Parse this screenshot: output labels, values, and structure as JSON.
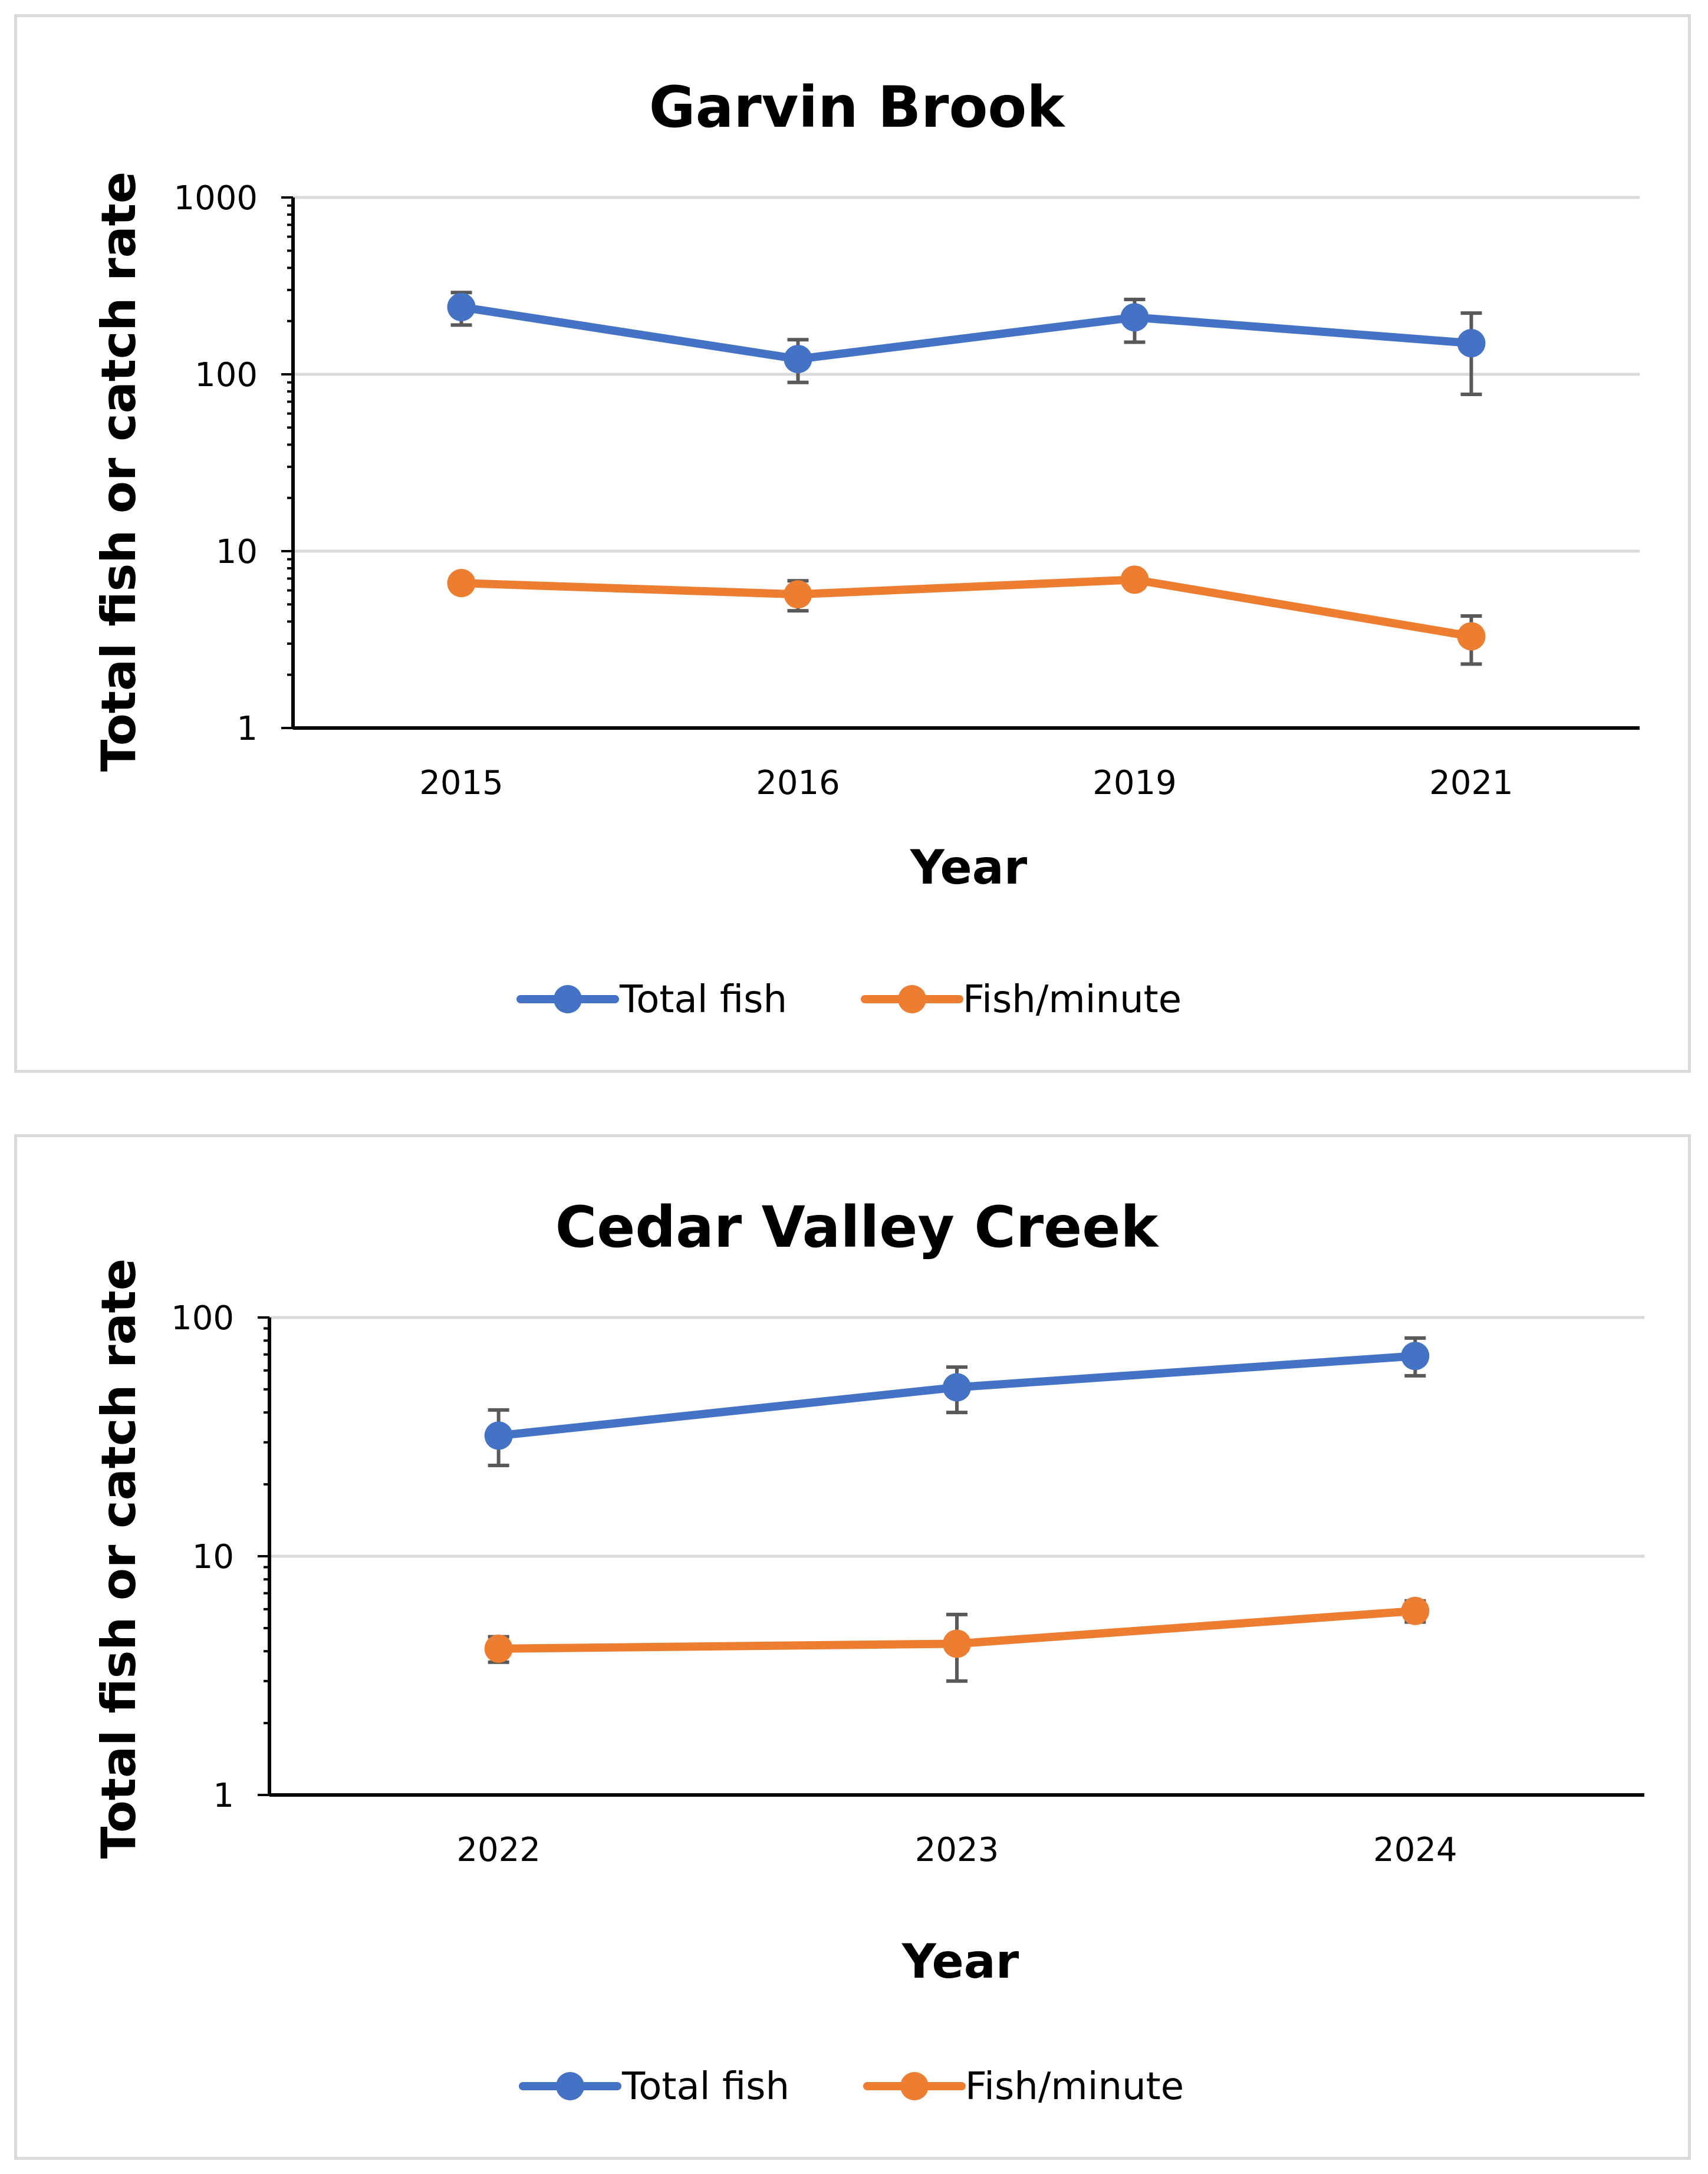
{
  "chart_data": [
    {
      "type": "line",
      "title": "Garvin Brook",
      "xlabel": "Year",
      "ylabel": "Total fish or catch rate",
      "yscale": "log",
      "ylim": [
        1,
        1000
      ],
      "ytick_labels": [
        "1",
        "10",
        "100",
        "1000"
      ],
      "categories": [
        "2015",
        "2016",
        "2019",
        "2021"
      ],
      "legend_position": "bottom",
      "grid": true,
      "series": [
        {
          "name": "Total fish",
          "color": "#4472c4",
          "values": [
            240,
            122,
            210,
            150
          ],
          "err_low": [
            190,
            90,
            152,
            77
          ],
          "err_high": [
            290,
            157,
            265,
            222
          ]
        },
        {
          "name": "Fish/minute",
          "color": "#ed7d31",
          "values": [
            6.6,
            5.7,
            6.9,
            3.3
          ],
          "err_low": [
            6.0,
            4.6,
            6.3,
            2.3
          ],
          "err_high": [
            7.2,
            6.8,
            7.5,
            4.3
          ]
        }
      ]
    },
    {
      "type": "line",
      "title": "Cedar Valley Creek",
      "xlabel": "Year",
      "ylabel": "Total fish or catch rate",
      "yscale": "log",
      "ylim": [
        1,
        100
      ],
      "ytick_labels": [
        "1",
        "10",
        "100"
      ],
      "categories": [
        "2022",
        "2023",
        "2024"
      ],
      "legend_position": "bottom",
      "grid": true,
      "series": [
        {
          "name": "Total fish",
          "color": "#4472c4",
          "values": [
            32,
            51,
            69
          ],
          "err_low": [
            24,
            40,
            57
          ],
          "err_high": [
            41,
            62,
            82
          ]
        },
        {
          "name": "Fish/minute",
          "color": "#ed7d31",
          "values": [
            4.1,
            4.3,
            5.9
          ],
          "err_low": [
            3.6,
            3.0,
            5.3
          ],
          "err_high": [
            4.6,
            5.7,
            6.5
          ]
        }
      ]
    }
  ]
}
